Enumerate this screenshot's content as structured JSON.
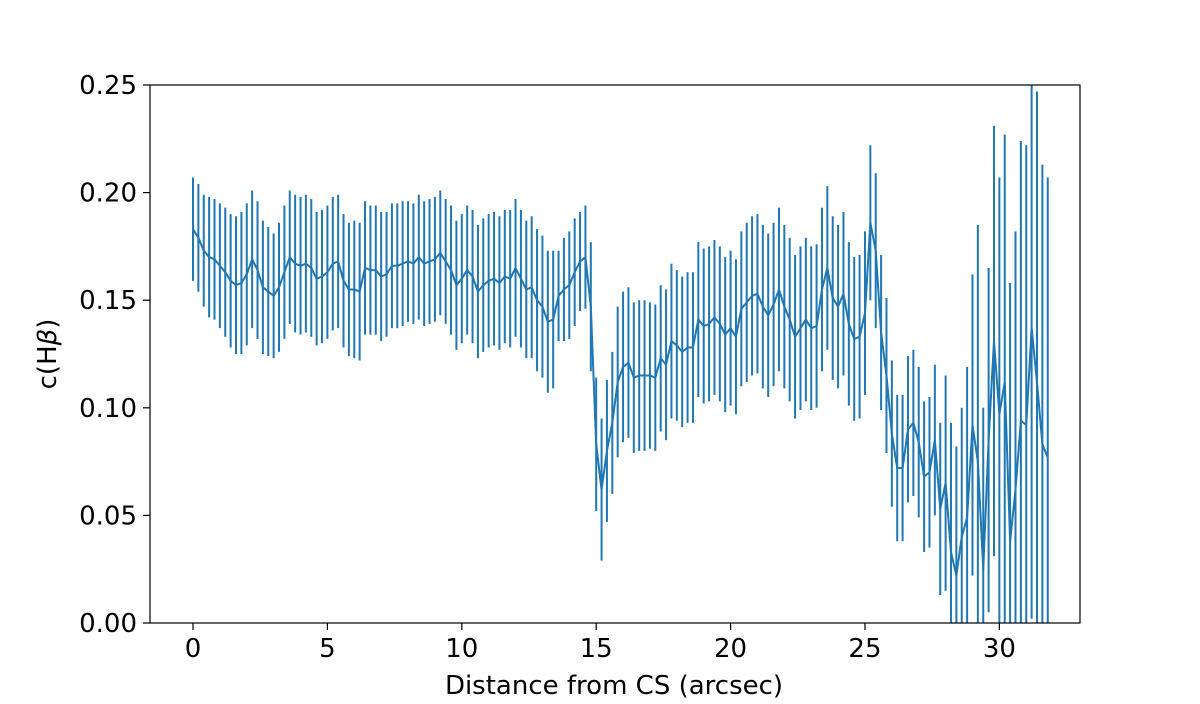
{
  "chart_data": {
    "type": "line",
    "title": "",
    "xlabel": "Distance from CS (arcsec)",
    "ylabel_prefix": "c(H",
    "ylabel_symbol": "β",
    "ylabel_suffix": ")",
    "xlim": [
      -1.6,
      33.0
    ],
    "ylim": [
      0.0,
      0.25
    ],
    "xticks": [
      0,
      5,
      10,
      15,
      20,
      25,
      30
    ],
    "xtick_labels": [
      "0",
      "5",
      "10",
      "15",
      "20",
      "25",
      "30"
    ],
    "yticks": [
      0.0,
      0.05,
      0.1,
      0.15,
      0.2,
      0.25
    ],
    "ytick_labels": [
      "0.00",
      "0.05",
      "0.10",
      "0.15",
      "0.20",
      "0.25"
    ],
    "grid": false,
    "series": [
      {
        "color": "#1f77b4",
        "x_start": 0.0,
        "x_step": 0.2,
        "values": [
          0.183,
          0.179,
          0.173,
          0.17,
          0.169,
          0.166,
          0.163,
          0.159,
          0.157,
          0.158,
          0.162,
          0.169,
          0.164,
          0.156,
          0.154,
          0.152,
          0.156,
          0.163,
          0.17,
          0.167,
          0.166,
          0.167,
          0.165,
          0.16,
          0.161,
          0.163,
          0.167,
          0.168,
          0.159,
          0.155,
          0.155,
          0.154,
          0.165,
          0.164,
          0.164,
          0.161,
          0.162,
          0.166,
          0.166,
          0.167,
          0.168,
          0.167,
          0.17,
          0.167,
          0.168,
          0.169,
          0.172,
          0.168,
          0.164,
          0.157,
          0.16,
          0.164,
          0.161,
          0.154,
          0.157,
          0.159,
          0.16,
          0.158,
          0.161,
          0.16,
          0.165,
          0.16,
          0.155,
          0.156,
          0.15,
          0.147,
          0.14,
          0.141,
          0.152,
          0.155,
          0.157,
          0.163,
          0.168,
          0.17,
          0.147,
          0.083,
          0.062,
          0.08,
          0.093,
          0.112,
          0.119,
          0.121,
          0.114,
          0.115,
          0.115,
          0.115,
          0.114,
          0.123,
          0.12,
          0.131,
          0.129,
          0.126,
          0.128,
          0.128,
          0.141,
          0.138,
          0.139,
          0.142,
          0.139,
          0.134,
          0.137,
          0.133,
          0.146,
          0.149,
          0.152,
          0.153,
          0.147,
          0.143,
          0.148,
          0.155,
          0.147,
          0.141,
          0.133,
          0.137,
          0.141,
          0.137,
          0.138,
          0.155,
          0.165,
          0.151,
          0.147,
          0.153,
          0.139,
          0.132,
          0.133,
          0.144,
          0.186,
          0.173,
          0.135,
          0.115,
          0.088,
          0.072,
          0.072,
          0.09,
          0.093,
          0.084,
          0.068,
          0.07,
          0.085,
          0.053,
          0.065,
          0.033,
          0.022,
          0.04,
          0.049,
          0.092,
          0.075,
          0.025,
          0.085,
          0.131,
          0.097,
          0.112,
          0.038,
          0.062,
          0.094,
          0.092,
          0.137,
          0.112,
          0.083,
          0.077
        ],
        "errors": [
          0.024,
          0.025,
          0.026,
          0.028,
          0.028,
          0.029,
          0.03,
          0.031,
          0.032,
          0.033,
          0.033,
          0.032,
          0.032,
          0.031,
          0.03,
          0.029,
          0.03,
          0.031,
          0.031,
          0.032,
          0.032,
          0.032,
          0.032,
          0.031,
          0.031,
          0.031,
          0.031,
          0.031,
          0.031,
          0.031,
          0.032,
          0.032,
          0.031,
          0.03,
          0.03,
          0.03,
          0.029,
          0.029,
          0.029,
          0.029,
          0.028,
          0.028,
          0.029,
          0.029,
          0.029,
          0.029,
          0.029,
          0.029,
          0.03,
          0.03,
          0.03,
          0.03,
          0.031,
          0.031,
          0.031,
          0.031,
          0.031,
          0.031,
          0.031,
          0.032,
          0.032,
          0.032,
          0.032,
          0.033,
          0.033,
          0.033,
          0.033,
          0.032,
          0.021,
          0.024,
          0.025,
          0.025,
          0.023,
          0.024,
          0.03,
          0.031,
          0.033,
          0.033,
          0.033,
          0.035,
          0.035,
          0.035,
          0.035,
          0.035,
          0.035,
          0.034,
          0.034,
          0.034,
          0.035,
          0.036,
          0.035,
          0.035,
          0.035,
          0.035,
          0.036,
          0.036,
          0.036,
          0.036,
          0.036,
          0.036,
          0.036,
          0.036,
          0.036,
          0.037,
          0.037,
          0.037,
          0.038,
          0.038,
          0.038,
          0.038,
          0.038,
          0.038,
          0.038,
          0.038,
          0.038,
          0.038,
          0.038,
          0.038,
          0.038,
          0.038,
          0.038,
          0.038,
          0.038,
          0.038,
          0.038,
          0.038,
          0.036,
          0.036,
          0.036,
          0.036,
          0.034,
          0.034,
          0.034,
          0.034,
          0.034,
          0.035,
          0.035,
          0.035,
          0.035,
          0.04,
          0.05,
          0.06,
          0.06,
          0.06,
          0.07,
          0.07,
          0.11,
          0.075,
          0.08,
          0.1,
          0.11,
          0.115,
          0.12,
          0.12,
          0.13,
          0.13,
          0.135,
          0.135,
          0.13,
          0.13
        ]
      }
    ]
  }
}
